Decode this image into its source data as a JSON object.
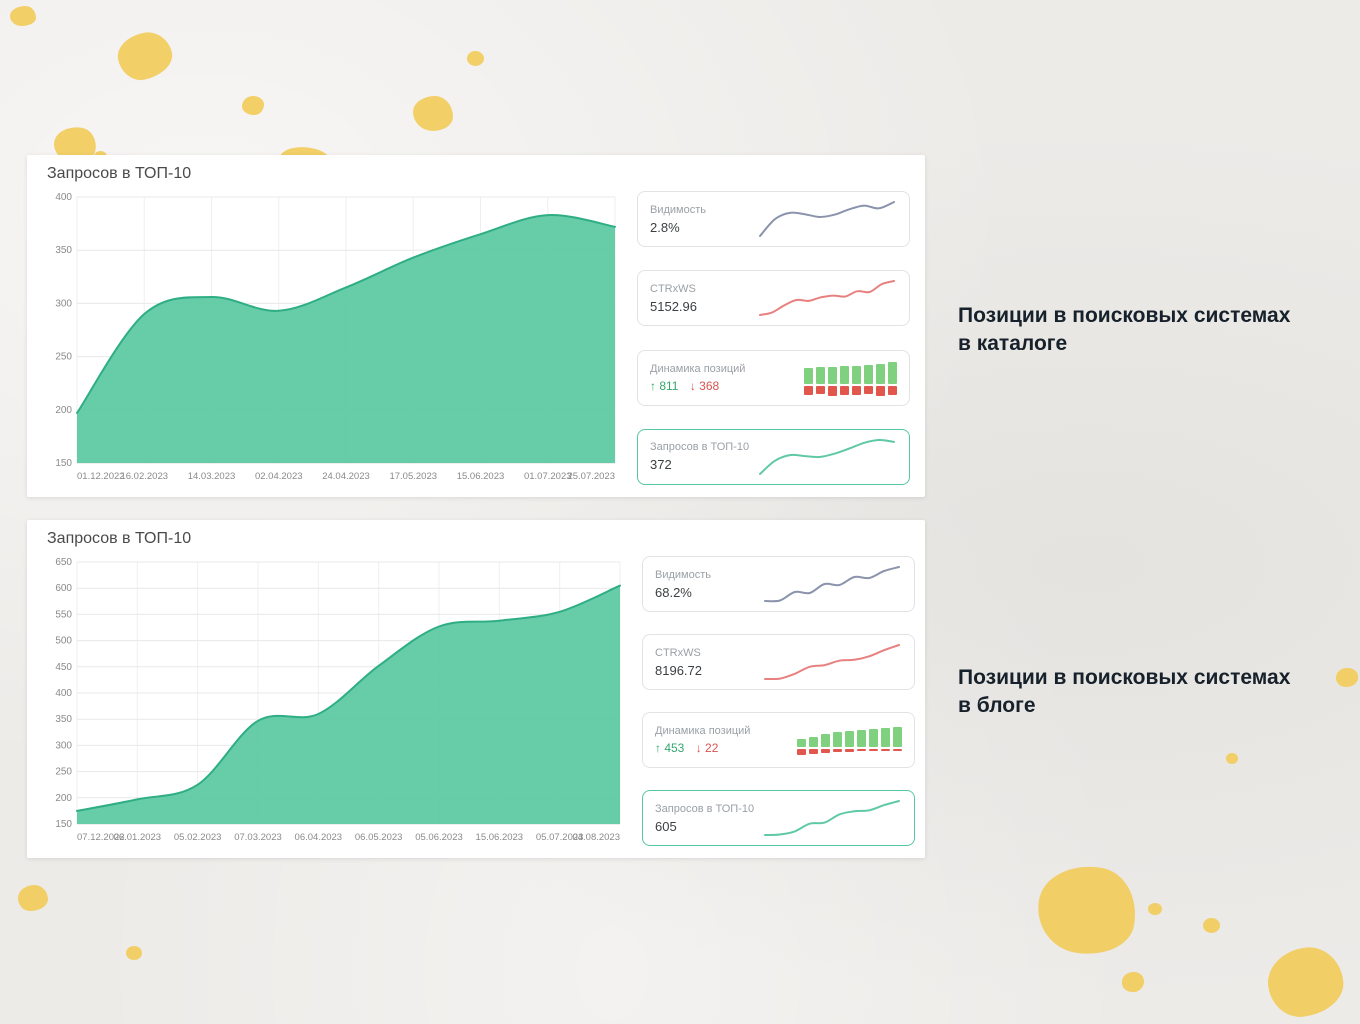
{
  "captions": [
    {
      "line1": "Позиции в поисковых системах",
      "line2": "в каталоге"
    },
    {
      "line1": "Позиции в поисковых системах",
      "line2": "в блоге"
    }
  ],
  "panels": [
    {
      "title": "Запросов в ТОП-10",
      "cards": [
        {
          "label": "Видимость",
          "value": "2.8%",
          "spark": {
            "values": [
              15,
              52,
              66,
              63,
              57,
              62,
              74,
              82,
              76,
              90
            ],
            "color": "#8b93ad"
          }
        },
        {
          "label": "CTRxWS",
          "value": "5152.96",
          "spark": {
            "values": [
              8,
              14,
              30,
              42,
              40,
              48,
              52,
              50,
              62,
              60,
              78,
              85
            ],
            "color": "#e88080"
          }
        },
        {
          "label": "Динамика позиций",
          "up": "↑ 811",
          "down": "↓ 368",
          "bars": {
            "up": [
              16,
              17,
              17,
              18,
              18,
              19,
              20,
              22
            ],
            "down": [
              9,
              8,
              10,
              9,
              9,
              8,
              10,
              9
            ],
            "up_color": "#7fd17f",
            "down_color": "#e2574d"
          }
        },
        {
          "label": "Запросов в ТОП-10",
          "value": "372",
          "spark": {
            "values": [
              12,
              40,
              52,
              50,
              48,
              55,
              66,
              78,
              84,
              80
            ],
            "color": "#5fc9a3"
          }
        }
      ]
    },
    {
      "title": "Запросов в ТОП-10",
      "cards": [
        {
          "label": "Видимость",
          "value": "68.2%",
          "spark": {
            "values": [
              12,
              13,
              30,
              28,
              46,
              44,
              60,
              58,
              72,
              80
            ],
            "color": "#8b93ad"
          }
        },
        {
          "label": "CTRxWS",
          "value": "8196.72",
          "spark": {
            "values": [
              10,
              11,
              22,
              38,
              42,
              52,
              54,
              62,
              76,
              88
            ],
            "color": "#e88080"
          }
        },
        {
          "label": "Динамика позиций",
          "up": "↑ 453",
          "down": "↓ 22",
          "bars": {
            "up": [
              8,
              10,
              13,
              15,
              16,
              17,
              18,
              19,
              20
            ],
            "down": [
              6,
              5,
              4,
              3,
              3,
              2,
              2,
              2,
              2
            ],
            "up_color": "#7fd17f",
            "down_color": "#e2574d"
          }
        },
        {
          "label": "Запросов в ТОП-10",
          "value": "605",
          "spark": {
            "values": [
              8,
              9,
              15,
              30,
              32,
              48,
              54,
              56,
              66,
              74
            ],
            "color": "#5fc9a3"
          }
        }
      ]
    }
  ],
  "chart_data": [
    {
      "type": "area",
      "title": "Запросов в ТОП-10",
      "categories": [
        "01.12.2022",
        "16.02.2023",
        "14.03.2023",
        "02.04.2023",
        "24.04.2023",
        "17.05.2023",
        "15.06.2023",
        "01.07.2023",
        "25.07.2023"
      ],
      "values": [
        197,
        290,
        306,
        293,
        315,
        343,
        365,
        383,
        372
      ],
      "ylim": [
        150,
        400
      ],
      "ytick_step": 50,
      "grid": true,
      "legend": "none",
      "fill_color": "#5ac8a1",
      "line_color": "#2fae86"
    },
    {
      "type": "area",
      "title": "Запросов в ТОП-10",
      "categories": [
        "07.12.2022",
        "06.01.2023",
        "05.02.2023",
        "07.03.2023",
        "06.04.2023",
        "06.05.2023",
        "05.06.2023",
        "15.06.2023",
        "05.07.2023",
        "04.08.2023"
      ],
      "values": [
        175,
        197,
        225,
        347,
        360,
        452,
        527,
        538,
        555,
        605
      ],
      "ylim": [
        150,
        650
      ],
      "ytick_step": 50,
      "grid": true,
      "legend": "none",
      "fill_color": "#5ac8a1",
      "line_color": "#2fae86"
    }
  ]
}
